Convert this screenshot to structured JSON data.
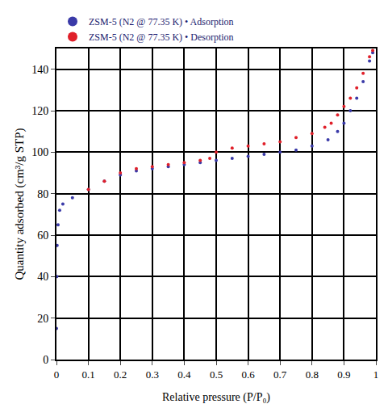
{
  "chart_data": {
    "type": "scatter",
    "x_label": "Relative pressure (P/P₀)",
    "y_label": "Quantity adsorbed (cm³/g STP)",
    "xlim": [
      0,
      1
    ],
    "ylim": [
      0,
      150
    ],
    "xticks": [
      0,
      0.1,
      0.2,
      0.3,
      0.4,
      0.5,
      0.6,
      0.7,
      0.8,
      0.9,
      1
    ],
    "yticks": [
      0,
      20,
      40,
      60,
      80,
      100,
      120,
      140
    ],
    "grid": true,
    "legend": "top left",
    "marker": "circle",
    "series": [
      {
        "name": "ZSM-5 (N2 @ 77.35 K) • Adsorption",
        "color": "#3a3aa8",
        "x": [
          0,
          0.001,
          0.002,
          0.005,
          0.01,
          0.02,
          0.05,
          0.1,
          0.15,
          0.2,
          0.25,
          0.3,
          0.35,
          0.4,
          0.45,
          0.5,
          0.55,
          0.6,
          0.65,
          0.7,
          0.75,
          0.8,
          0.85,
          0.88,
          0.9,
          0.92,
          0.94,
          0.96,
          0.98,
          0.99
        ],
        "values": [
          15,
          40,
          55,
          65,
          72,
          75,
          78,
          82,
          86,
          89,
          91,
          92,
          93,
          94,
          95,
          96,
          97,
          98,
          99,
          100,
          101,
          103,
          106,
          110,
          114,
          120,
          126,
          134,
          144,
          148
        ]
      },
      {
        "name": "ZSM-5 (N2 @ 77.35 K) • Desorption",
        "color": "#e0202a",
        "x": [
          0.99,
          0.98,
          0.96,
          0.94,
          0.92,
          0.9,
          0.88,
          0.86,
          0.84,
          0.8,
          0.75,
          0.7,
          0.65,
          0.6,
          0.55,
          0.5,
          0.48,
          0.45,
          0.4,
          0.35,
          0.3,
          0.25,
          0.2,
          0.15,
          0.1
        ],
        "values": [
          149,
          146,
          138,
          131,
          126,
          122,
          118,
          114,
          112,
          109,
          107,
          105,
          104,
          103,
          102,
          100,
          97,
          96,
          95,
          94,
          93,
          92,
          90,
          86,
          82
        ]
      }
    ]
  }
}
